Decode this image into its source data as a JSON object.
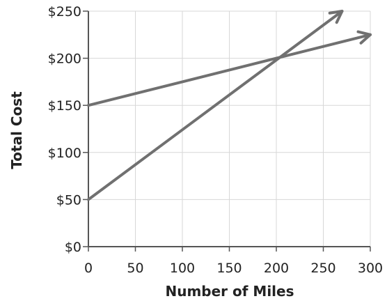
{
  "chart_data": {
    "type": "line",
    "title": "",
    "xlabel": "Number of Miles",
    "ylabel": "Total Cost",
    "xlim": [
      0,
      300
    ],
    "ylim": [
      0,
      250
    ],
    "x_ticks": [
      0,
      50,
      100,
      150,
      200,
      250,
      300
    ],
    "x_tick_labels": [
      "0",
      "50",
      "100",
      "150",
      "200",
      "250",
      "300"
    ],
    "y_ticks": [
      0,
      50,
      100,
      150,
      200,
      250
    ],
    "y_tick_labels": [
      "$0",
      "$50",
      "$100",
      "$150",
      "$200",
      "$250"
    ],
    "grid": true,
    "series": [
      {
        "x": [
          0,
          300
        ],
        "y": [
          150,
          225
        ],
        "arrow_end": true
      },
      {
        "x": [
          0,
          270
        ],
        "y": [
          50,
          250
        ],
        "arrow_end": true
      }
    ],
    "colors": {
      "line": "#707070",
      "grid": "#d7d7d7",
      "axis": "#555555",
      "text": "#222222"
    }
  }
}
